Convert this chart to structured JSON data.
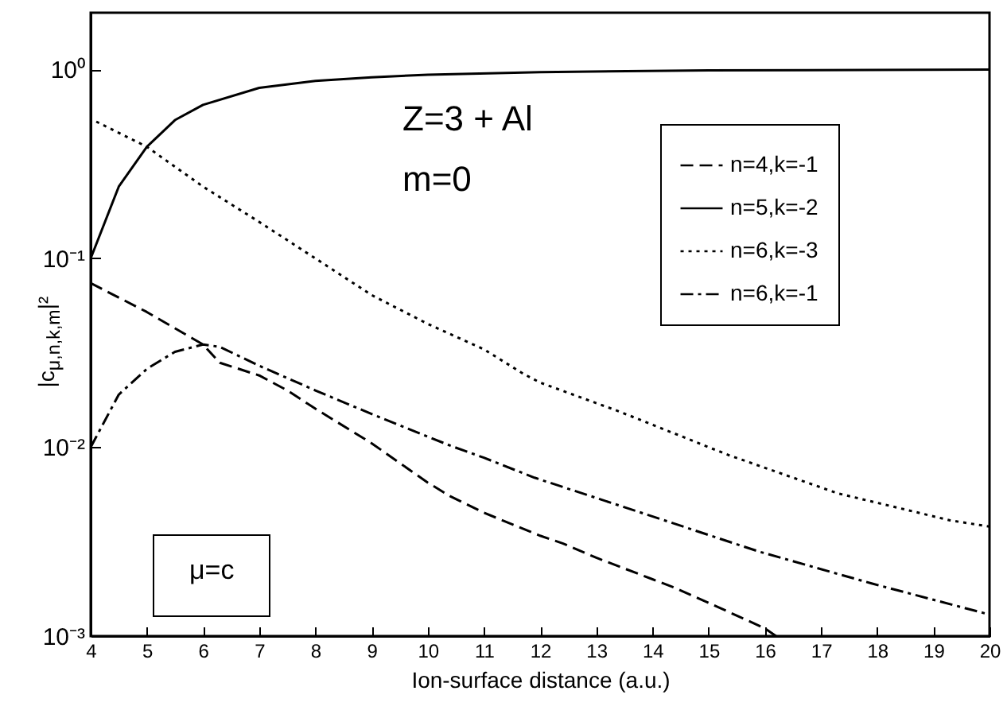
{
  "chart_data": {
    "type": "line",
    "xlabel": "Ion-surface distance (a.u.)",
    "ylabel": "|c$_{μ,n,k,m}$|²",
    "annotations": [
      "Z=3 + Al",
      "m=0",
      "μ=c"
    ],
    "xlim": [
      4,
      20
    ],
    "xticks": [
      4,
      5,
      6,
      7,
      8,
      9,
      10,
      11,
      12,
      13,
      14,
      15,
      16,
      17,
      18,
      19,
      20
    ],
    "ylim": [
      0.001,
      2
    ],
    "yticks": [
      {
        "value": 0.001,
        "label": "10⁻³"
      },
      {
        "value": 0.01,
        "label": "10⁻²"
      },
      {
        "value": 0.1,
        "label": "10⁻¹"
      },
      {
        "value": 1,
        "label": "10⁰"
      }
    ],
    "log": "y",
    "grid": false,
    "legend": "top right",
    "marker": "none",
    "series": [
      {
        "name": "n=4,k=-1",
        "color": "#000000",
        "line_style": "dashed",
        "x": [
          4,
          5,
          6,
          6.3,
          7,
          7.5,
          8,
          9,
          10,
          10.4,
          11,
          12,
          12.4,
          13,
          14,
          14.4,
          15,
          16,
          16.2
        ],
        "values": [
          0.074,
          0.052,
          0.035,
          0.028,
          0.024,
          0.02,
          0.016,
          0.0105,
          0.0065,
          0.0055,
          0.0045,
          0.0034,
          0.0031,
          0.0026,
          0.002,
          0.0018,
          0.0015,
          0.0011,
          0.001
        ]
      },
      {
        "name": "n=5,k=-2",
        "color": "#000000",
        "line_style": "solid",
        "x": [
          4,
          4.5,
          5,
          5.5,
          6,
          7,
          8,
          9,
          10,
          12,
          15,
          20
        ],
        "values": [
          0.1,
          0.24,
          0.39,
          0.54,
          0.65,
          0.8,
          0.87,
          0.91,
          0.94,
          0.97,
          0.99,
          1.0
        ]
      },
      {
        "name": "n=6,k=-3",
        "color": "#000000",
        "line_style": "dotted",
        "x": [
          4.1,
          5,
          6,
          7,
          8,
          9,
          10,
          11,
          11.7,
          12,
          13.4,
          15.35,
          17.3,
          19.3,
          20
        ],
        "values": [
          0.53,
          0.39,
          0.24,
          0.156,
          0.1,
          0.064,
          0.045,
          0.033,
          0.0245,
          0.022,
          0.0155,
          0.0091,
          0.0057,
          0.0041,
          0.0038
        ]
      },
      {
        "name": "n=6,k=-1",
        "color": "#000000",
        "line_style": "dashdot",
        "x": [
          4,
          4.5,
          5,
          5.5,
          6,
          6.3,
          7,
          8,
          9,
          10.4,
          11,
          11.9,
          13.9,
          15.9,
          17.9,
          20
        ],
        "values": [
          0.01,
          0.019,
          0.026,
          0.032,
          0.035,
          0.034,
          0.027,
          0.02,
          0.015,
          0.0102,
          0.0088,
          0.0069,
          0.0044,
          0.0028,
          0.0019,
          0.0013
        ]
      }
    ]
  }
}
